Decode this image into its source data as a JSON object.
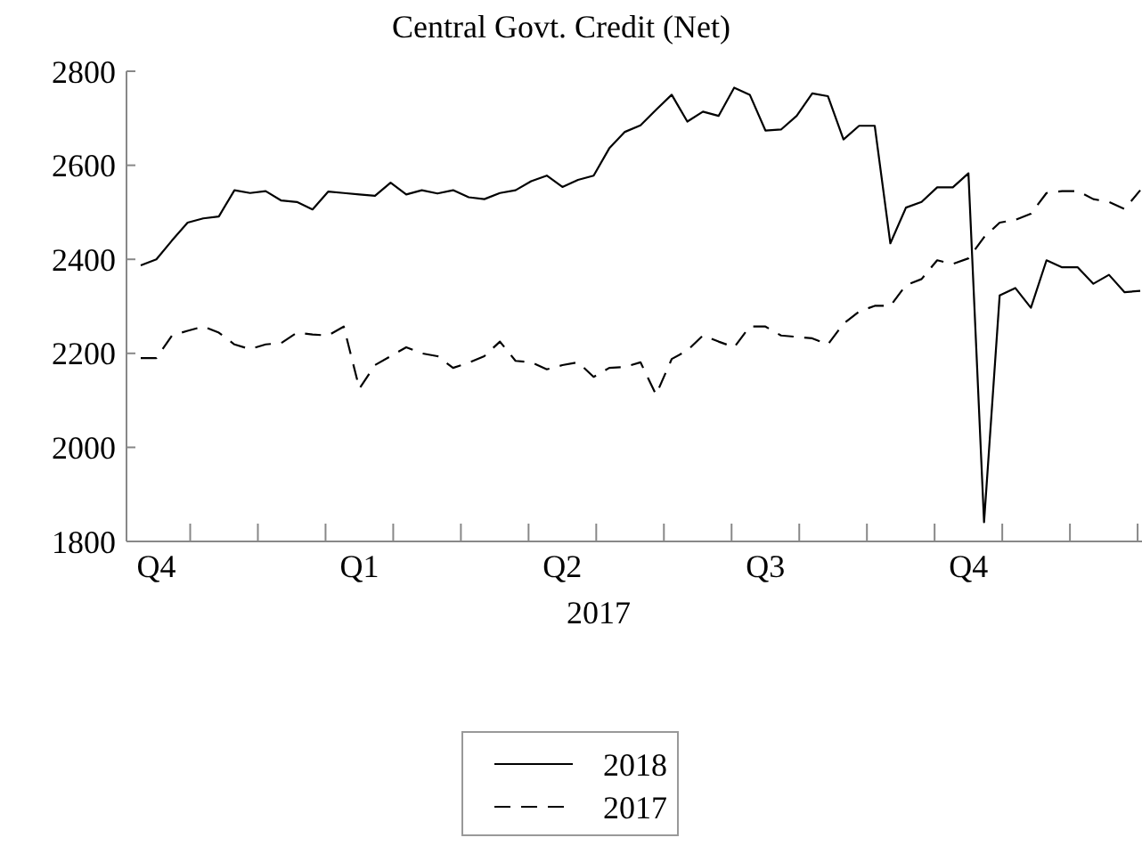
{
  "chart_data": {
    "type": "line",
    "title": "Central Govt. Credit (Net)",
    "xlabel": "2017",
    "categories": [
      null,
      "Q4",
      null,
      null,
      null,
      null,
      null,
      null,
      null,
      null,
      null,
      null,
      null,
      null,
      "Q1",
      null,
      null,
      null,
      null,
      null,
      null,
      null,
      null,
      null,
      null,
      null,
      null,
      "Q2",
      null,
      null,
      null,
      null,
      null,
      null,
      null,
      null,
      null,
      null,
      null,
      null,
      "Q3",
      null,
      null,
      null,
      null,
      null,
      null,
      null,
      null,
      null,
      null,
      null,
      null,
      "Q4",
      null,
      null,
      null,
      null,
      null,
      null,
      null,
      null,
      null,
      null,
      null
    ],
    "ylim": [
      1800,
      2800
    ],
    "yticks": [
      1800,
      2000,
      2200,
      2400,
      2600,
      2800
    ],
    "legend": "bottom",
    "series": [
      {
        "name": "2018",
        "color": "#000000",
        "line_style": "solid",
        "values": [
          2387,
          2400,
          2440,
          2478,
          2487,
          2491,
          2547,
          2541,
          2545,
          2525,
          2522,
          2506,
          2544,
          2541,
          2538,
          2535,
          2563,
          2538,
          2547,
          2540,
          2547,
          2532,
          2528,
          2541,
          2547,
          2566,
          2578,
          2554,
          2569,
          2578,
          2636,
          2671,
          2685,
          2718,
          2750,
          2693,
          2714,
          2705,
          2765,
          2750,
          2674,
          2676,
          2705,
          2753,
          2747,
          2655,
          2684,
          2684,
          2434,
          2510,
          2522,
          2553,
          2553,
          2583,
          1841,
          2323,
          2339,
          2297,
          2398,
          2383,
          2383,
          2348,
          2367,
          2330,
          2333
        ]
      },
      {
        "name": "2017",
        "color": "#000000",
        "line_style": "dashed",
        "values": [
          2190,
          2190,
          2238,
          2248,
          2257,
          2244,
          2219,
          2209,
          2219,
          2222,
          2244,
          2240,
          2238,
          2257,
          2125,
          2175,
          2194,
          2213,
          2200,
          2194,
          2169,
          2180,
          2194,
          2225,
          2184,
          2181,
          2166,
          2175,
          2181,
          2150,
          2169,
          2171,
          2181,
          2112,
          2188,
          2206,
          2238,
          2225,
          2213,
          2257,
          2257,
          2238,
          2235,
          2232,
          2219,
          2263,
          2289,
          2301,
          2301,
          2345,
          2358,
          2398,
          2390,
          2402,
          2447,
          2478,
          2484,
          2497,
          2541,
          2545,
          2545,
          2528,
          2522,
          2507,
          2547
        ]
      }
    ]
  }
}
